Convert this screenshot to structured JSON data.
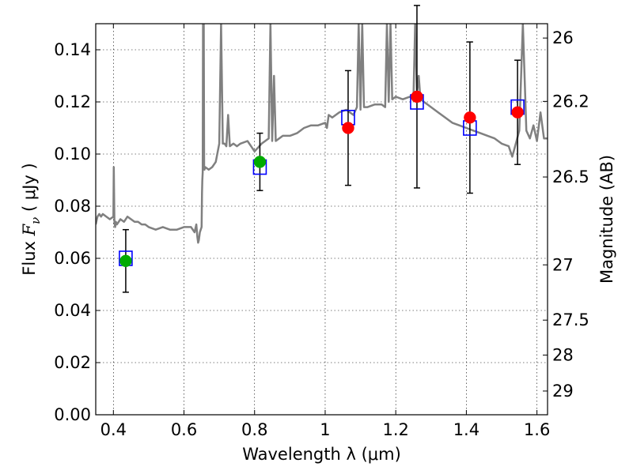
{
  "chart_data": {
    "type": "scatter",
    "title": "",
    "xlabel": "Wavelength  λ (μm)",
    "ylabel": "Flux  F_ν  ( μJy )",
    "ylabel_parts": {
      "pre": "Flux  ",
      "var": "F",
      "sub": "ν",
      "post": "  ( μJy )"
    },
    "y2label": "Magnitude (AB)",
    "xlim": [
      0.35,
      1.63
    ],
    "ylim": [
      0.0,
      0.15
    ],
    "grid": true,
    "x_ticks": [
      0.4,
      0.6,
      0.8,
      1.0,
      1.2,
      1.4,
      1.6
    ],
    "x_tick_labels": [
      "0.4",
      "0.6",
      "0.8",
      "1",
      "1.2",
      "1.4",
      "1.6"
    ],
    "y_ticks": [
      0.0,
      0.02,
      0.04,
      0.06,
      0.08,
      0.1,
      0.12,
      0.14
    ],
    "y_tick_labels": [
      "0.00",
      "0.02",
      "0.04",
      "0.06",
      "0.08",
      "0.10",
      "0.12",
      "0.14"
    ],
    "mag_ticks": [
      {
        "label": "26",
        "flux": 0.1445
      },
      {
        "label": "26.2",
        "flux": 0.1202
      },
      {
        "label": "26.5",
        "flux": 0.0912
      },
      {
        "label": "27",
        "flux": 0.0575
      },
      {
        "label": "27.5",
        "flux": 0.0363
      },
      {
        "label": "28",
        "flux": 0.0229
      },
      {
        "label": "29",
        "flux": 0.0091
      }
    ],
    "colors": {
      "template": "#808080",
      "model_box": "#0000ff",
      "observed_optical": "#00aa00",
      "observed_nir": "#ff0000",
      "errorbar": "#000000"
    },
    "template_spectrum": {
      "x": [
        0.35,
        0.355,
        0.36,
        0.365,
        0.37,
        0.38,
        0.39,
        0.4,
        0.401,
        0.403,
        0.405,
        0.407,
        0.41,
        0.42,
        0.43,
        0.44,
        0.45,
        0.46,
        0.47,
        0.48,
        0.49,
        0.5,
        0.52,
        0.54,
        0.56,
        0.58,
        0.6,
        0.62,
        0.63,
        0.635,
        0.638,
        0.64,
        0.642,
        0.645,
        0.65,
        0.651,
        0.652,
        0.653,
        0.654,
        0.655,
        0.656,
        0.657,
        0.658,
        0.66,
        0.67,
        0.68,
        0.69,
        0.7,
        0.705,
        0.71,
        0.715,
        0.72,
        0.725,
        0.73,
        0.74,
        0.75,
        0.76,
        0.78,
        0.79,
        0.8,
        0.82,
        0.84,
        0.845,
        0.85,
        0.855,
        0.86,
        0.88,
        0.9,
        0.92,
        0.94,
        0.96,
        0.98,
        1.0,
        1.005,
        1.01,
        1.02,
        1.04,
        1.06,
        1.08,
        1.09,
        1.095,
        1.1,
        1.105,
        1.11,
        1.12,
        1.14,
        1.16,
        1.17,
        1.175,
        1.18,
        1.185,
        1.19,
        1.2,
        1.22,
        1.24,
        1.25,
        1.255,
        1.26,
        1.265,
        1.27,
        1.28,
        1.3,
        1.32,
        1.34,
        1.36,
        1.38,
        1.4,
        1.42,
        1.44,
        1.46,
        1.48,
        1.5,
        1.52,
        1.53,
        1.54,
        1.55,
        1.56,
        1.57,
        1.58,
        1.59,
        1.6,
        1.61,
        1.62,
        1.63
      ],
      "y": [
        0.073,
        0.076,
        0.077,
        0.076,
        0.077,
        0.076,
        0.075,
        0.076,
        0.095,
        0.074,
        0.072,
        0.074,
        0.073,
        0.075,
        0.074,
        0.076,
        0.075,
        0.074,
        0.074,
        0.073,
        0.073,
        0.072,
        0.071,
        0.072,
        0.071,
        0.071,
        0.072,
        0.072,
        0.07,
        0.073,
        0.068,
        0.066,
        0.067,
        0.07,
        0.072,
        0.085,
        0.09,
        0.093,
        0.15,
        0.155,
        0.15,
        0.094,
        0.094,
        0.095,
        0.094,
        0.095,
        0.097,
        0.104,
        0.15,
        0.104,
        0.104,
        0.103,
        0.115,
        0.103,
        0.104,
        0.103,
        0.104,
        0.105,
        0.103,
        0.101,
        0.104,
        0.106,
        0.15,
        0.105,
        0.13,
        0.105,
        0.107,
        0.107,
        0.108,
        0.11,
        0.111,
        0.111,
        0.112,
        0.11,
        0.115,
        0.114,
        0.116,
        0.117,
        0.115,
        0.118,
        0.15,
        0.117,
        0.15,
        0.118,
        0.118,
        0.119,
        0.119,
        0.118,
        0.15,
        0.12,
        0.15,
        0.121,
        0.122,
        0.121,
        0.122,
        0.121,
        0.15,
        0.123,
        0.13,
        0.121,
        0.12,
        0.118,
        0.116,
        0.114,
        0.112,
        0.111,
        0.11,
        0.109,
        0.108,
        0.107,
        0.106,
        0.104,
        0.103,
        0.099,
        0.104,
        0.109,
        0.15,
        0.109,
        0.106,
        0.111,
        0.105,
        0.116,
        0.106,
        0.106
      ]
    },
    "model_boxes": [
      {
        "x": 0.435,
        "y": 0.06
      },
      {
        "x": 0.815,
        "y": 0.095
      },
      {
        "x": 1.065,
        "y": 0.114
      },
      {
        "x": 1.26,
        "y": 0.12
      },
      {
        "x": 1.41,
        "y": 0.11
      },
      {
        "x": 1.545,
        "y": 0.118
      }
    ],
    "observed_points": [
      {
        "x": 0.435,
        "y": 0.059,
        "err_low": 0.012,
        "err_high": 0.012,
        "group": "optical"
      },
      {
        "x": 0.815,
        "y": 0.097,
        "err_low": 0.011,
        "err_high": 0.011,
        "group": "optical"
      },
      {
        "x": 1.065,
        "y": 0.11,
        "err_low": 0.022,
        "err_high": 0.022,
        "group": "nir"
      },
      {
        "x": 1.26,
        "y": 0.122,
        "err_low": 0.035,
        "err_high": 0.035,
        "group": "nir"
      },
      {
        "x": 1.41,
        "y": 0.114,
        "err_low": 0.029,
        "err_high": 0.029,
        "group": "nir"
      },
      {
        "x": 1.545,
        "y": 0.116,
        "err_low": 0.02,
        "err_high": 0.02,
        "group": "nir"
      }
    ]
  }
}
